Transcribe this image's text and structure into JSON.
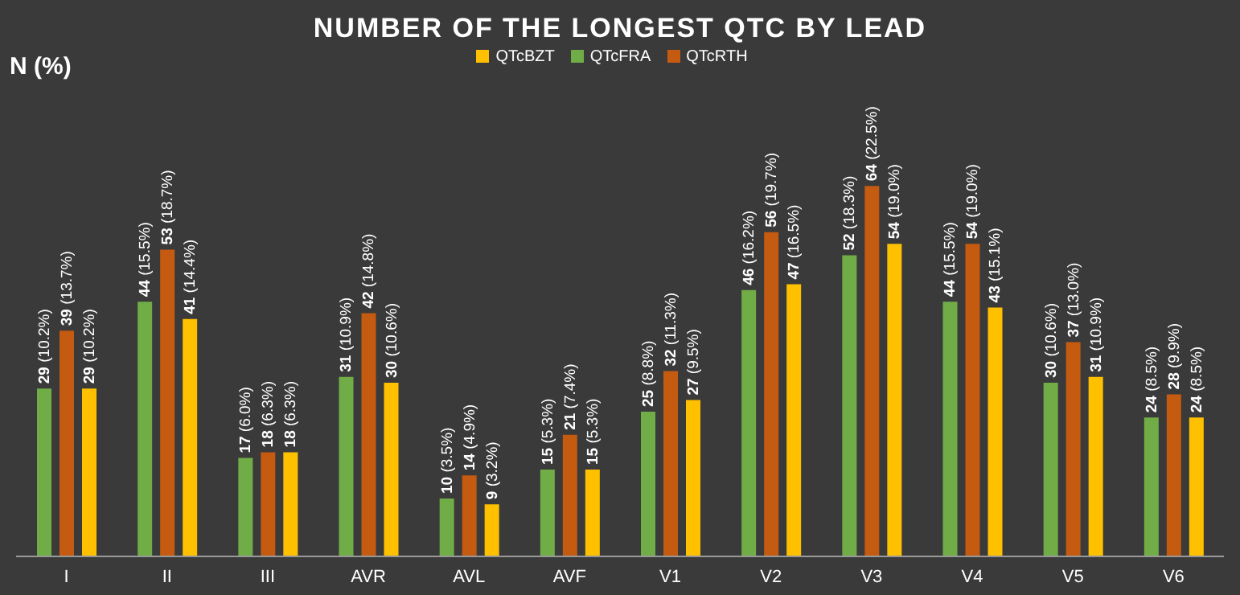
{
  "chart_data": {
    "type": "bar",
    "title": "NUMBER OF THE LONGEST QTC BY LEAD",
    "ylabel": "N (%)",
    "legend": "top",
    "grid": false,
    "categories": [
      "I",
      "II",
      "III",
      "AVR",
      "AVL",
      "AVF",
      "V1",
      "V2",
      "V3",
      "V4",
      "V5",
      "V6"
    ],
    "series": [
      {
        "name": "QTcFRA",
        "color": "#70ad47",
        "values": [
          29,
          44,
          17,
          31,
          10,
          15,
          25,
          46,
          52,
          44,
          30,
          24
        ],
        "value_labels": [
          "29 (10.2%)",
          "44 (15.5%)",
          "17 (6.0%)",
          "31 (10.9%)",
          "10 (3.5%)",
          "15 (5.3%)",
          "25 (8.8%)",
          "46 (16.2%)",
          "52 (18.3%)",
          "44 (15.5%)",
          "30 (10.6%)",
          "24 (8.5%)"
        ]
      },
      {
        "name": "QTcRTH",
        "color": "#c55a11",
        "values": [
          39,
          53,
          18,
          42,
          14,
          21,
          32,
          56,
          64,
          54,
          37,
          28
        ],
        "value_labels": [
          "39 (13.7%)",
          "53 (18.7%)",
          "18 (6.3%)",
          "42 (14.8%)",
          "14 (4.9%)",
          "21 (7.4%)",
          "32 (11.3%)",
          "56 (19.7%)",
          "64 (22.5%)",
          "54 (19.0%)",
          "37 (13.0%)",
          "28 (9.9%)"
        ]
      },
      {
        "name": "QTcBZT",
        "color": "#ffc000",
        "values": [
          29,
          41,
          18,
          30,
          9,
          15,
          27,
          47,
          54,
          43,
          31,
          24
        ],
        "value_labels": [
          "29 (10.2%)",
          "41 (14.4%)",
          "18 (6.3%)",
          "30 (10.6%)",
          "9 (3.2%)",
          "15 (5.3%)",
          "27 (9.5%)",
          "47 (16.5%)",
          "54 (19.0%)",
          "43 (15.1%)",
          "31 (10.9%)",
          "24 (8.5%)"
        ]
      }
    ]
  }
}
